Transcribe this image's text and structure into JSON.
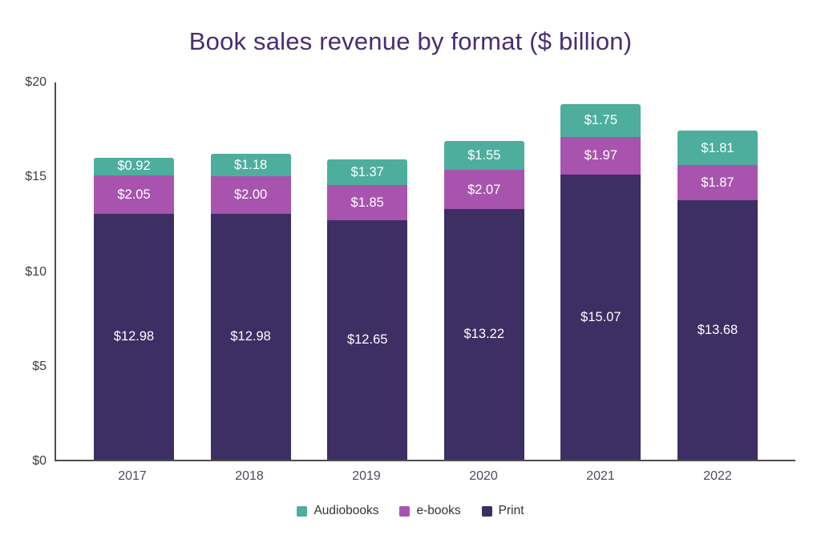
{
  "title": "Book sales revenue by format ($ billion)",
  "colors": {
    "audiobooks": "#4dae9d",
    "ebooks": "#a854ae",
    "print": "#3d2e63",
    "title_text": "#4a2c72",
    "axis_line": "#4d4d4d",
    "bar_value_text": "#ffffff"
  },
  "chart_data": {
    "type": "bar",
    "stacked": true,
    "title": "Book sales revenue by format ($ billion)",
    "xlabel": "",
    "ylabel": "",
    "ylim": [
      0,
      20
    ],
    "grid": false,
    "legend_position": "bottom",
    "categories": [
      "2017",
      "2018",
      "2019",
      "2020",
      "2021",
      "2022"
    ],
    "series": [
      {
        "name": "Audiobooks",
        "color": "#4dae9d",
        "values": [
          0.92,
          1.18,
          1.37,
          1.55,
          1.75,
          1.81
        ],
        "labels": [
          "$0.92",
          "$1.18",
          "$1.37",
          "$1.55",
          "$1.75",
          "$1.81"
        ]
      },
      {
        "name": "e-books",
        "color": "#a854ae",
        "values": [
          2.05,
          2.0,
          1.85,
          2.07,
          1.97,
          1.87
        ],
        "labels": [
          "$2.05",
          "$2.00",
          "$1.85",
          "$2.07",
          "$1.97",
          "$1.87"
        ]
      },
      {
        "name": "Print",
        "color": "#3d2e63",
        "values": [
          12.98,
          12.98,
          12.65,
          13.22,
          15.07,
          13.68
        ],
        "labels": [
          "$12.98",
          "$12.98",
          "$12.65",
          "$13.22",
          "$15.07",
          "$13.68"
        ]
      }
    ],
    "y_ticks": [
      {
        "label": "$0",
        "value": 0
      },
      {
        "label": "$5",
        "value": 5
      },
      {
        "label": "$10",
        "value": 10
      },
      {
        "label": "$15",
        "value": 15
      },
      {
        "label": "$20",
        "value": 20
      }
    ]
  }
}
